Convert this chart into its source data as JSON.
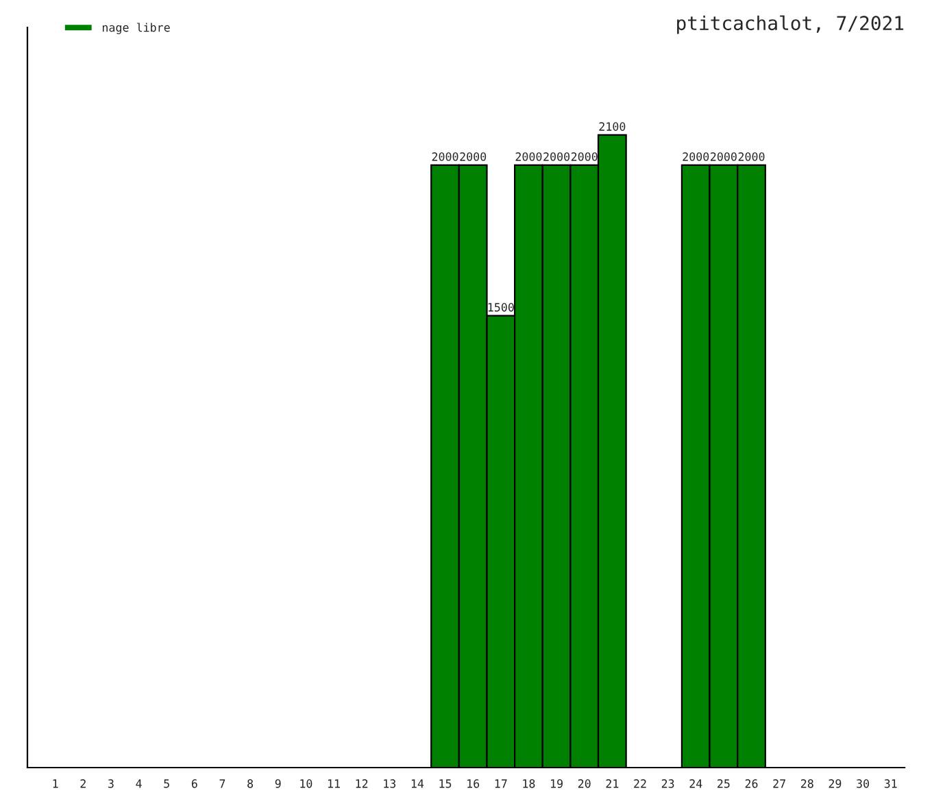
{
  "chart_data": {
    "type": "bar",
    "title": "ptitcachalot, 7/2021",
    "categories": [
      "1",
      "2",
      "3",
      "4",
      "5",
      "6",
      "7",
      "8",
      "9",
      "10",
      "11",
      "12",
      "13",
      "14",
      "15",
      "16",
      "17",
      "18",
      "19",
      "20",
      "21",
      "22",
      "23",
      "24",
      "25",
      "26",
      "27",
      "28",
      "29",
      "30",
      "31"
    ],
    "series": [
      {
        "name": "nage libre",
        "color": "#008000",
        "values": [
          null,
          null,
          null,
          null,
          null,
          null,
          null,
          null,
          null,
          null,
          null,
          null,
          null,
          null,
          2000,
          2000,
          1500,
          2000,
          2000,
          2000,
          2100,
          null,
          null,
          2000,
          2000,
          2000,
          null,
          null,
          null,
          null,
          null
        ]
      }
    ],
    "data_labels": true,
    "legend": "top left",
    "grid": false
  }
}
